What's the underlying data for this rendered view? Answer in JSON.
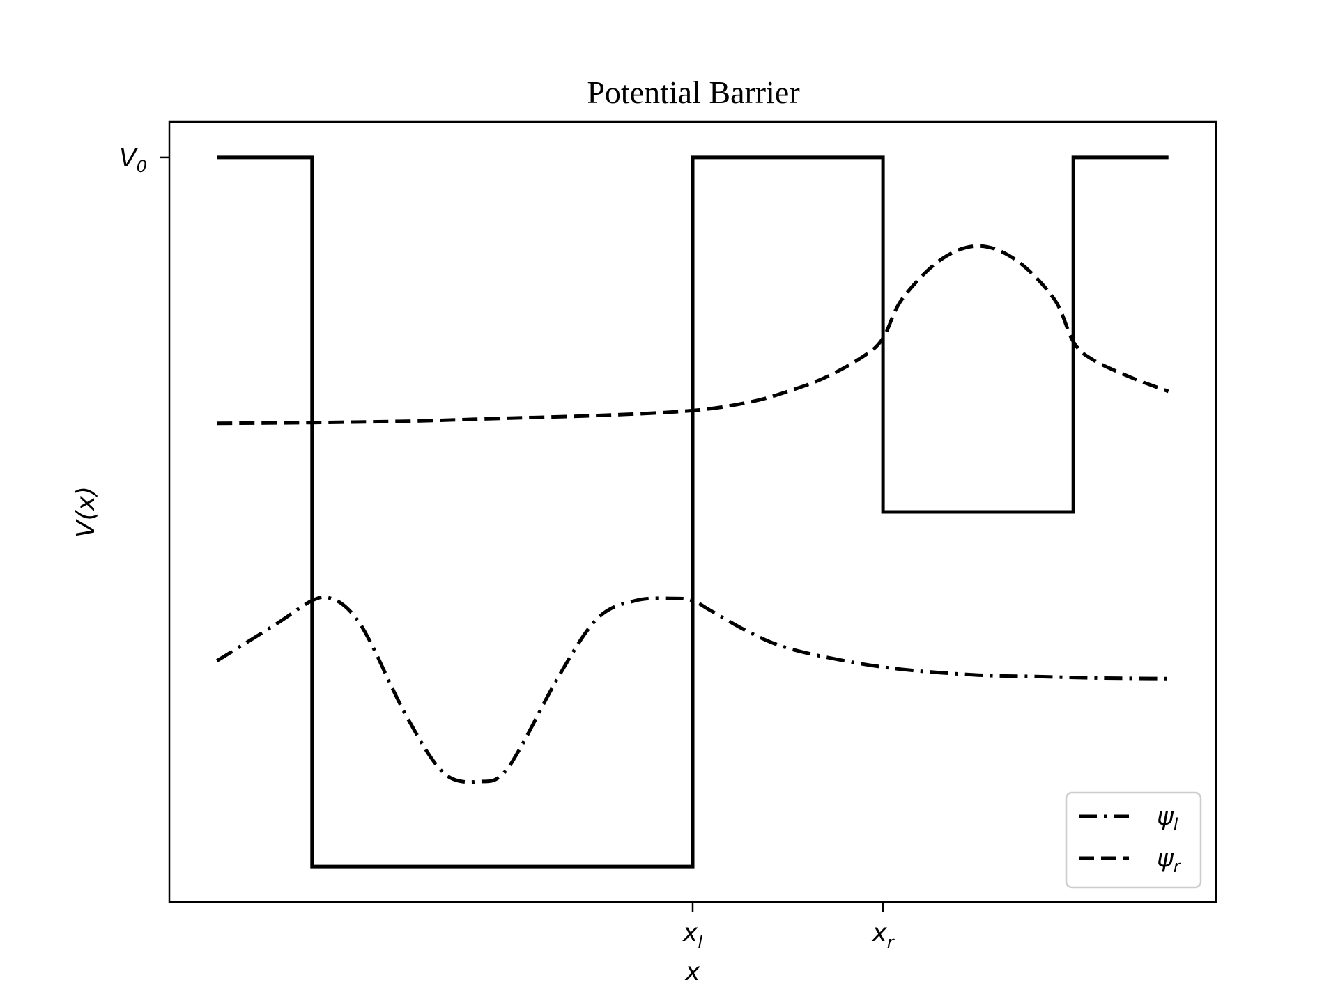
{
  "chart_data": {
    "type": "line",
    "title": "Potential Barrier",
    "xlabel": "x",
    "ylabel": "V(x)",
    "xlim": [
      -1.25,
      4.25
    ],
    "ylim": [
      -0.05,
      1.05
    ],
    "x_ticks": [
      {
        "value": 1.5,
        "base": "x",
        "sub": "l"
      },
      {
        "value": 2.5,
        "base": "x",
        "sub": "r"
      }
    ],
    "y_ticks": [
      {
        "value": 1.0,
        "base": "V",
        "sub": "0"
      }
    ],
    "potential": {
      "name": "V(x)",
      "style": "solid",
      "x": [
        -1.0,
        -0.5,
        -0.5,
        1.5,
        1.5,
        2.5,
        2.5,
        3.5,
        3.5,
        4.0
      ],
      "y": [
        1.0,
        1.0,
        0.0,
        0.0,
        1.0,
        1.0,
        0.5,
        0.5,
        1.0,
        1.0
      ]
    },
    "series": [
      {
        "name": "ψl",
        "legend_base": "ψ",
        "legend_sub": "l",
        "style": "dashdot",
        "x": [
          -1.0,
          -0.7,
          -0.5,
          -0.4,
          -0.3,
          -0.2,
          0.0,
          0.2,
          0.4,
          0.5,
          0.6,
          0.8,
          1.0,
          1.2,
          1.4,
          1.5,
          1.6,
          1.8,
          2.0,
          2.3,
          2.6,
          3.0,
          3.3,
          3.6,
          4.0
        ],
        "y": [
          0.29,
          0.34,
          0.375,
          0.378,
          0.36,
          0.32,
          0.21,
          0.13,
          0.12,
          0.13,
          0.17,
          0.27,
          0.35,
          0.375,
          0.378,
          0.375,
          0.36,
          0.33,
          0.308,
          0.29,
          0.278,
          0.27,
          0.268,
          0.266,
          0.265
        ]
      },
      {
        "name": "ψr",
        "legend_base": "ψ",
        "legend_sub": "r",
        "style": "dashed",
        "x": [
          -1.0,
          -0.5,
          0.0,
          0.5,
          1.0,
          1.5,
          1.8,
          2.0,
          2.2,
          2.4,
          2.5,
          2.6,
          2.8,
          3.0,
          3.2,
          3.4,
          3.5,
          3.6,
          3.8,
          4.0
        ],
        "y": [
          0.625,
          0.626,
          0.628,
          0.632,
          0.636,
          0.643,
          0.655,
          0.67,
          0.69,
          0.72,
          0.745,
          0.8,
          0.855,
          0.875,
          0.855,
          0.8,
          0.74,
          0.715,
          0.69,
          0.67
        ]
      }
    ],
    "legend_position": "lower right",
    "grid": false
  }
}
